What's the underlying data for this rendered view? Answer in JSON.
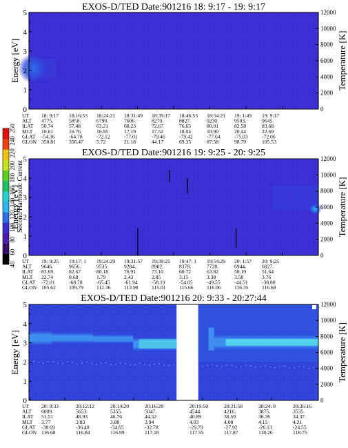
{
  "chart_data": [
    {
      "type": "heatmap",
      "title": "EXOS-D/TED   Date:901216  18: 9:17 - 19: 9:17",
      "ylabel": "Energy [eV]",
      "y2label": "Temperature [K]",
      "ylim": [
        0,
        5
      ],
      "y2lim": [
        0,
        12000
      ],
      "yticks": [
        "0",
        "1",
        "2",
        "3",
        "4",
        "5"
      ],
      "y2ticks": [
        "0",
        "2000",
        "4000",
        "6000",
        "8000",
        "10000",
        "12000"
      ],
      "bg_color": "#3a2fd2",
      "table": {
        "rows": [
          [
            "UT",
            "18: 9:17",
            "18:16:53",
            "18:24:21",
            "18:31:49",
            "18:39:17",
            "18:46:53",
            "18:54:21",
            "19: 1:49",
            "19: 9:17"
          ],
          [
            "ALT",
            "4775.",
            "5858.",
            "6799.",
            "7606.",
            "8279.",
            "8827.",
            "9230.",
            "9503.",
            "9645."
          ],
          [
            "ILAT",
            "50.74",
            "57.48",
            "63.21",
            "68.23",
            "72.67",
            "76.65",
            "80.01",
            "82.58",
            "83.68"
          ],
          [
            "MLT",
            "16.61",
            "16.76",
            "16.95",
            "17.19",
            "17.52",
            "18.04",
            "18.90",
            "20.44",
            "22.69"
          ],
          [
            "GLAT",
            "-54.36",
            "-64.78",
            "-72.12",
            "-77.01",
            "-79.46",
            "-79.42",
            "-77.64",
            "-75.03",
            "-72.06"
          ],
          [
            "GLON",
            "350.81",
            "356.47",
            "5.72",
            "21.18",
            "44.17",
            "69.35",
            "87.58",
            "98.79",
            "105.53"
          ]
        ]
      }
    },
    {
      "type": "heatmap",
      "title": "EXOS-D/TED   Date:901216  19: 9:25 - 20: 9:25",
      "ylabel": "Energy [eV]",
      "y2label": "Temperature [K]",
      "ylim": [
        0,
        5
      ],
      "y2lim": [
        0,
        12000
      ],
      "yticks": [
        "0",
        "1",
        "2",
        "3",
        "4",
        "5"
      ],
      "y2ticks": [
        "0",
        "2000",
        "4000",
        "6000",
        "8000",
        "10000",
        "12000"
      ],
      "bg_color": "#3a2fd2",
      "table": {
        "rows": [
          [
            "UT",
            "19: 9:25",
            "19:17: 1",
            "19:24:29",
            "19:31:57",
            "19:39:25",
            "19:47: 1",
            "19:54:29",
            "20: 1:57",
            "20: 9:25"
          ],
          [
            "ALT",
            "9646.",
            "9656.",
            "9535.",
            "9284.",
            "8902.",
            "8378.",
            "7728.",
            "6944.",
            "6027."
          ],
          [
            "ILAT",
            "83.69",
            "82.67",
            "80.18",
            "76.91",
            "73.10",
            "68.72",
            "63.82",
            "58.19",
            "51.64"
          ],
          [
            "MLT",
            "22.74",
            "0.68",
            "1.79",
            "2.43",
            "2.85",
            "3.15",
            "3.38",
            "3.58",
            "3.76"
          ],
          [
            "GLAT",
            "-72.01",
            "-68.78",
            "-65.45",
            "-61.94",
            "-58.19",
            "-54.05",
            "-49.55",
            "-44.51",
            "-38.80"
          ],
          [
            "GLON",
            "105.62",
            "109.79",
            "112.36",
            "113.98",
            "115.01",
            "115.66",
            "116.06",
            "116.35",
            "116.68"
          ]
        ]
      }
    },
    {
      "type": "heatmap",
      "title": "EXOS-D/TED   Date:901216  20: 9:33 - 20:27:44",
      "ylabel": "Energy [eV]",
      "y2label": "Temperature [K]",
      "ylim": [
        0,
        5
      ],
      "y2lim": [
        0,
        12000
      ],
      "yticks": [
        "0",
        "1",
        "2",
        "3",
        "4",
        "5"
      ],
      "y2ticks": [
        "0",
        "2000",
        "4000",
        "6000",
        "8000",
        "10000",
        "12000"
      ],
      "bg_color": "#2f45dc",
      "band_color": "#3e8ef0",
      "band_core_color": "#5cf0e8",
      "table": {
        "rows": [
          [
            "UT",
            "20: 9:33",
            "20:12:12",
            "20:14:20",
            "20:16:28",
            "20:19:50",
            "20:21:58",
            "20:24: 8",
            "20:26:16"
          ],
          [
            "ALT",
            "6009.",
            "5653.",
            "5355.",
            "5047.",
            "4544.",
            "4216.",
            "3875.",
            "3535."
          ],
          [
            "ILAT",
            "51.51",
            "48.93",
            "46.76",
            "44.52",
            "40.89",
            "38.59",
            "36.36",
            "34.37"
          ],
          [
            "MLT",
            "3.77",
            "3.83",
            "3.88",
            "3.94",
            "4.03",
            "4.08",
            "4.15",
            "4.21"
          ],
          [
            "GLAT",
            "-38.69",
            "-36.48",
            "-34.65",
            "-32.78",
            "-29.79",
            "-27.92",
            "-26.13",
            "-24.55"
          ],
          [
            "GLON",
            "116.68",
            "116.84",
            "116.99",
            "117.18",
            "117.55",
            "117.87",
            "118.26",
            "118.75"
          ]
        ]
      }
    }
  ],
  "colorbar": {
    "label": "Second Harmonic Current",
    "ticks": [
      "40",
      "60",
      "80",
      "100",
      "120",
      "140",
      "160",
      "180",
      "200",
      "220",
      "240",
      "250"
    ],
    "colors": [
      "#000000",
      "#3a0f6a",
      "#4a1fb0",
      "#3a2fd2",
      "#2f6fe8",
      "#2fb4f0",
      "#22d0d0",
      "#22c060",
      "#58d020",
      "#c8e018",
      "#f0c010",
      "#f04010",
      "#e01010"
    ]
  }
}
